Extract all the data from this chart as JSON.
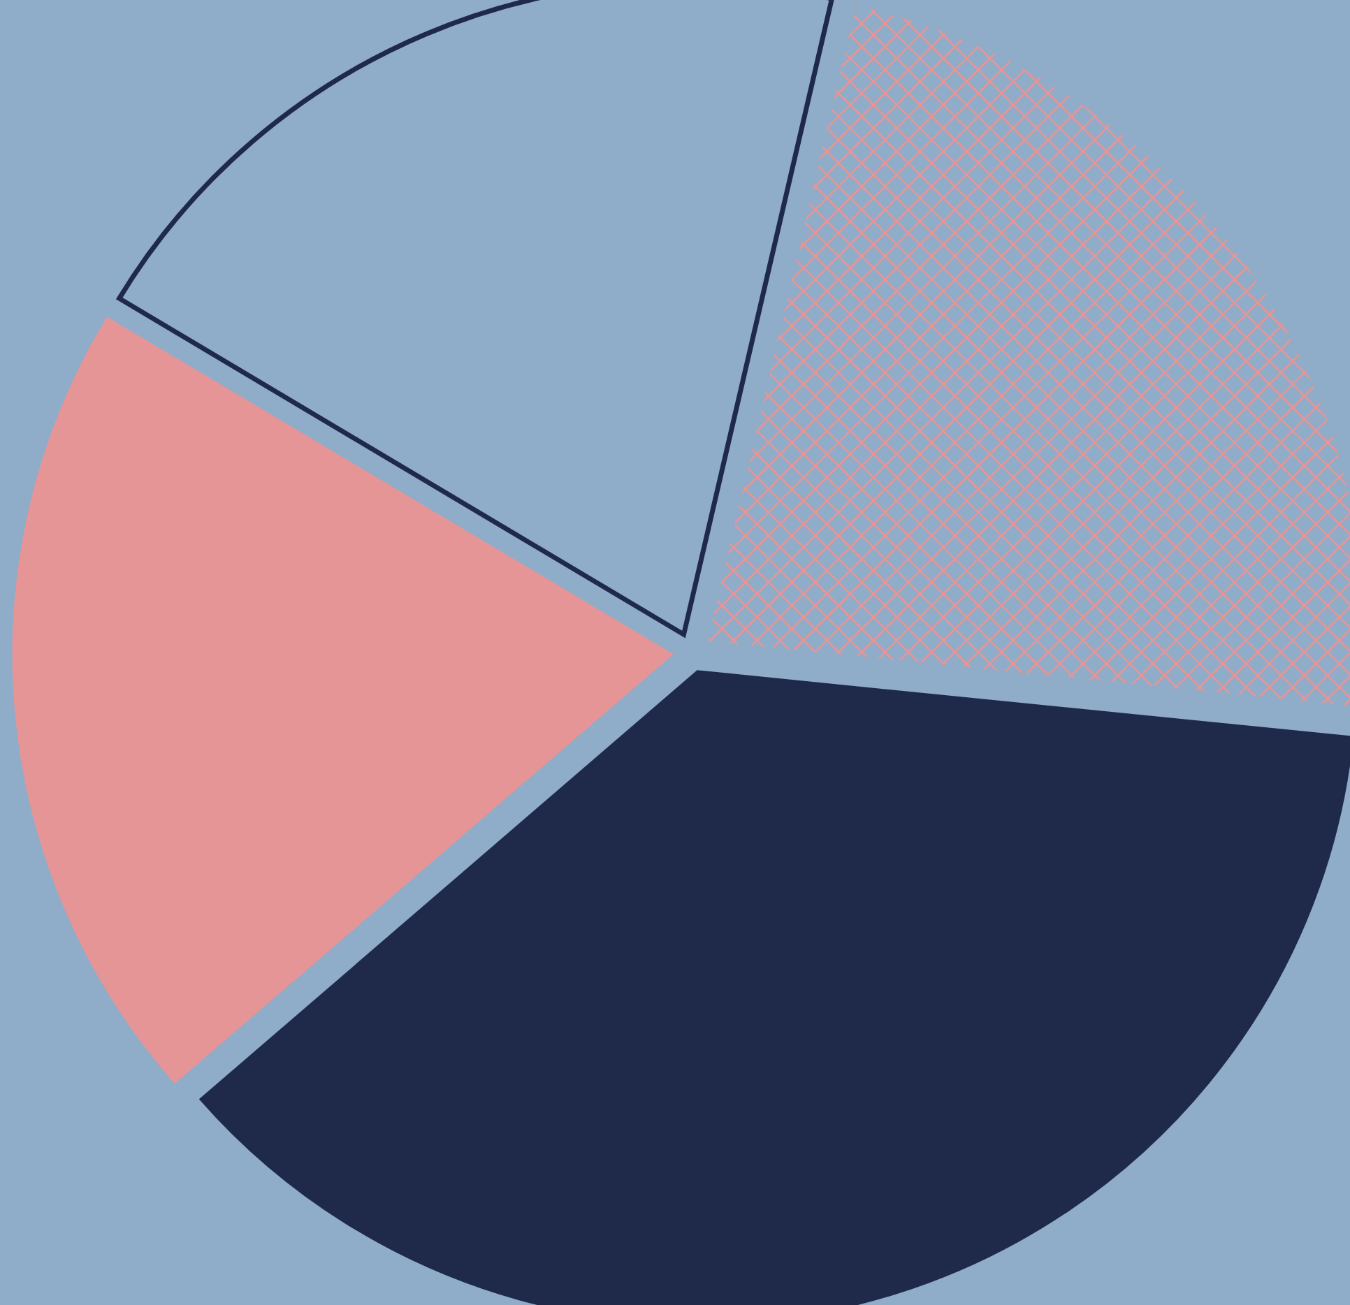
{
  "chart_data": {
    "type": "pie",
    "categories": [
      null,
      null,
      null,
      null
    ],
    "values": [
      20,
      20,
      37,
      23
    ],
    "colors": [
      "#1f2a4b",
      "#e69597",
      "#1f2a4b",
      "#e69597"
    ]
  }
}
